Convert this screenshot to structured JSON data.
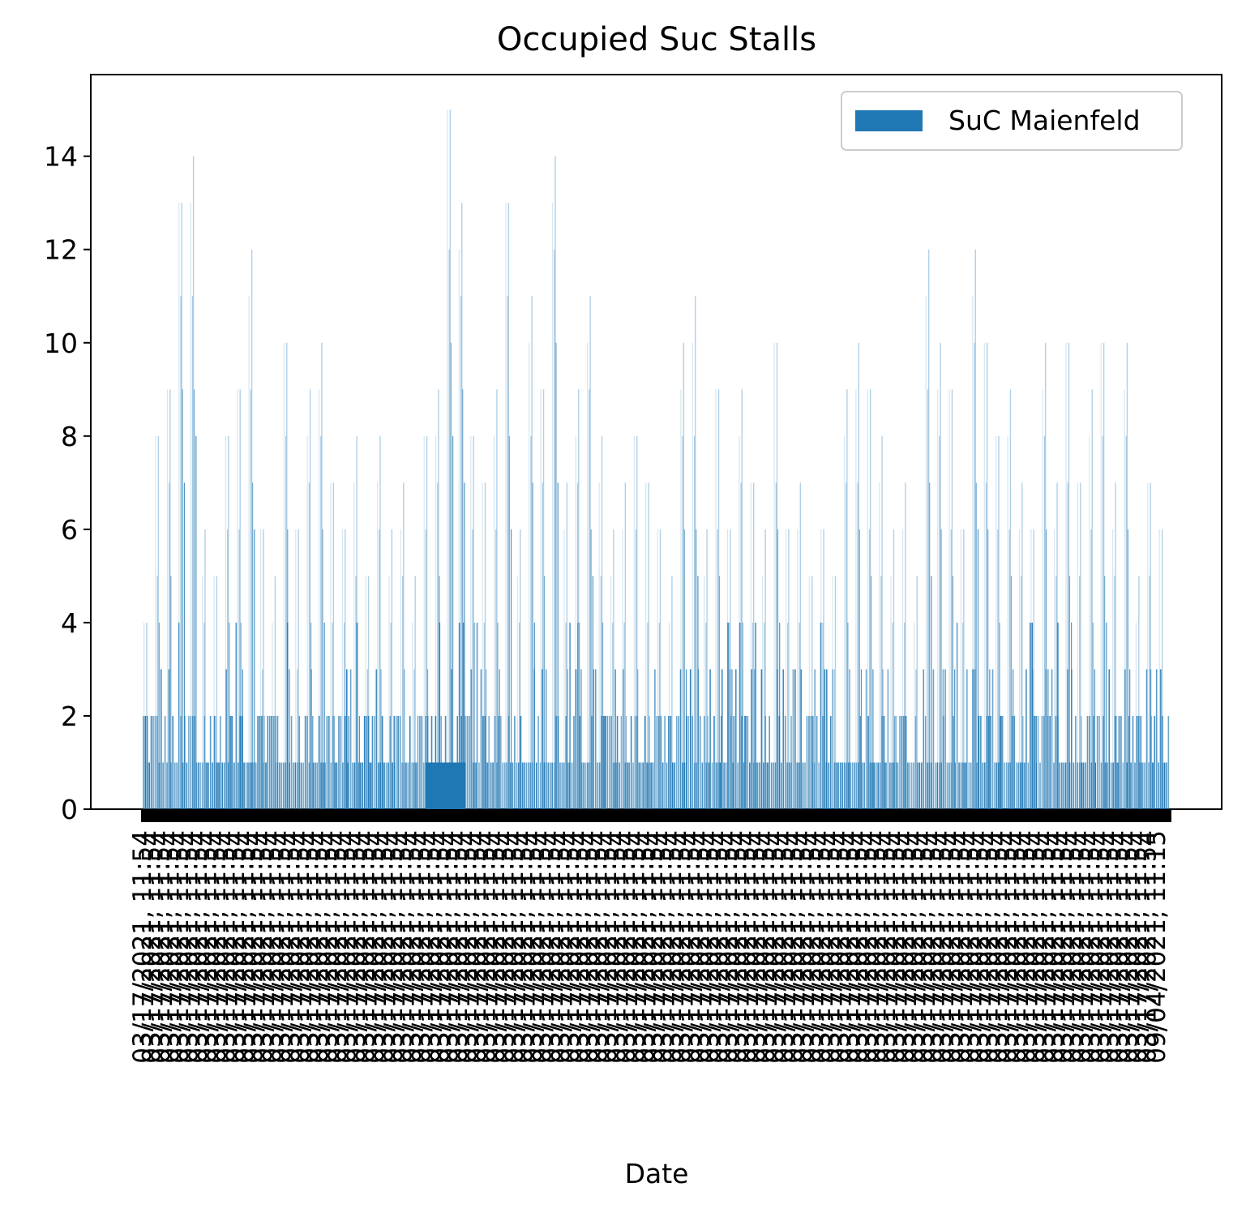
{
  "chart_data": {
    "type": "bar",
    "title": "Occupied Suc Stalls",
    "xlabel": "Date",
    "ylabel": "",
    "ylim": [
      0,
      15.75
    ],
    "yticks": [
      0,
      2,
      4,
      6,
      8,
      10,
      12,
      14
    ],
    "legend_position": "top-right",
    "grid": false,
    "colors": {
      "bar": "#1f77b4",
      "axis": "#000000",
      "tick_label_mass": "#000000"
    },
    "x_tick_labels_note_start": "03/17/2021, 11:54",
    "x_tick_labels_note_end": "09/04/2021, 11:15",
    "series": [
      {
        "name": "SuC Maienfeld",
        "peak_values": [
          {
            "x": "03/17/2021",
            "y": 4
          },
          {
            "x": "03/19/2021",
            "y": 8
          },
          {
            "x": "03/21/2021",
            "y": 9
          },
          {
            "x": "03/22/2021",
            "y": 13
          },
          {
            "x": "03/23/2021",
            "y": 14
          },
          {
            "x": "03/25/2021",
            "y": 6
          },
          {
            "x": "03/27/2021",
            "y": 5
          },
          {
            "x": "03/29/2021",
            "y": 8
          },
          {
            "x": "03/31/2021",
            "y": 9
          },
          {
            "x": "04/02/2021",
            "y": 12
          },
          {
            "x": "04/04/2021",
            "y": 6
          },
          {
            "x": "04/06/2021",
            "y": 5
          },
          {
            "x": "04/08/2021",
            "y": 10
          },
          {
            "x": "04/10/2021",
            "y": 6
          },
          {
            "x": "04/12/2021",
            "y": 9
          },
          {
            "x": "04/14/2021",
            "y": 10
          },
          {
            "x": "04/16/2021",
            "y": 7
          },
          {
            "x": "04/18/2021",
            "y": 6
          },
          {
            "x": "04/20/2021",
            "y": 8
          },
          {
            "x": "04/22/2021",
            "y": 5
          },
          {
            "x": "04/24/2021",
            "y": 8
          },
          {
            "x": "04/26/2021",
            "y": 6
          },
          {
            "x": "04/28/2021",
            "y": 7
          },
          {
            "x": "04/30/2021",
            "y": 5
          },
          {
            "x": "05/02/2021",
            "y": 8
          },
          {
            "x": "05/04/2021",
            "y": 9
          },
          {
            "x": "05/05/2021",
            "y": 15
          },
          {
            "x": "05/06/2021",
            "y": 13
          },
          {
            "x": "05/08/2021",
            "y": 8
          },
          {
            "x": "05/10/2021",
            "y": 7
          },
          {
            "x": "05/12/2021",
            "y": 9
          },
          {
            "x": "05/14/2021",
            "y": 13
          },
          {
            "x": "05/16/2021",
            "y": 6
          },
          {
            "x": "05/18/2021",
            "y": 11
          },
          {
            "x": "05/20/2021",
            "y": 9
          },
          {
            "x": "05/22/2021",
            "y": 14
          },
          {
            "x": "05/24/2021",
            "y": 7
          },
          {
            "x": "05/26/2021",
            "y": 9
          },
          {
            "x": "05/28/2021",
            "y": 11
          },
          {
            "x": "05/30/2021",
            "y": 8
          },
          {
            "x": "06/01/2021",
            "y": 6
          },
          {
            "x": "06/03/2021",
            "y": 7
          },
          {
            "x": "06/05/2021",
            "y": 8
          },
          {
            "x": "06/07/2021",
            "y": 7
          },
          {
            "x": "06/09/2021",
            "y": 6
          },
          {
            "x": "06/11/2021",
            "y": 5
          },
          {
            "x": "06/13/2021",
            "y": 10
          },
          {
            "x": "06/15/2021",
            "y": 11
          },
          {
            "x": "06/17/2021",
            "y": 6
          },
          {
            "x": "06/19/2021",
            "y": 9
          },
          {
            "x": "06/21/2021",
            "y": 6
          },
          {
            "x": "06/23/2021",
            "y": 9
          },
          {
            "x": "06/25/2021",
            "y": 7
          },
          {
            "x": "06/27/2021",
            "y": 6
          },
          {
            "x": "06/29/2021",
            "y": 10
          },
          {
            "x": "07/01/2021",
            "y": 6
          },
          {
            "x": "07/03/2021",
            "y": 7
          },
          {
            "x": "07/05/2021",
            "y": 5
          },
          {
            "x": "07/07/2021",
            "y": 6
          },
          {
            "x": "07/09/2021",
            "y": 5
          },
          {
            "x": "07/11/2021",
            "y": 9
          },
          {
            "x": "07/13/2021",
            "y": 10
          },
          {
            "x": "07/15/2021",
            "y": 9
          },
          {
            "x": "07/17/2021",
            "y": 8
          },
          {
            "x": "07/19/2021",
            "y": 6
          },
          {
            "x": "07/21/2021",
            "y": 7
          },
          {
            "x": "07/23/2021",
            "y": 5
          },
          {
            "x": "07/25/2021",
            "y": 12
          },
          {
            "x": "07/27/2021",
            "y": 10
          },
          {
            "x": "07/29/2021",
            "y": 9
          },
          {
            "x": "07/31/2021",
            "y": 6
          },
          {
            "x": "08/02/2021",
            "y": 12
          },
          {
            "x": "08/04/2021",
            "y": 10
          },
          {
            "x": "08/06/2021",
            "y": 8
          },
          {
            "x": "08/08/2021",
            "y": 9
          },
          {
            "x": "08/10/2021",
            "y": 7
          },
          {
            "x": "08/12/2021",
            "y": 6
          },
          {
            "x": "08/14/2021",
            "y": 10
          },
          {
            "x": "08/16/2021",
            "y": 7
          },
          {
            "x": "08/18/2021",
            "y": 10
          },
          {
            "x": "08/20/2021",
            "y": 7
          },
          {
            "x": "08/22/2021",
            "y": 9
          },
          {
            "x": "08/24/2021",
            "y": 10
          },
          {
            "x": "08/26/2021",
            "y": 7
          },
          {
            "x": "08/28/2021",
            "y": 10
          },
          {
            "x": "08/30/2021",
            "y": 5
          },
          {
            "x": "09/01/2021",
            "y": 7
          },
          {
            "x": "09/03/2021",
            "y": 6
          }
        ]
      }
    ]
  }
}
